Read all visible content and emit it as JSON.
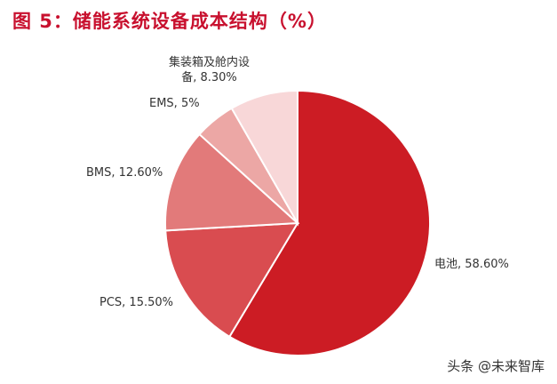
{
  "chart_data": {
    "type": "pie",
    "title": "图 5：储能系统设备成本结构（%）",
    "slices": [
      {
        "label": "电池, 58.60%",
        "name": "电池",
        "value": 58.6,
        "color": "#cc1c24"
      },
      {
        "label": "PCS, 15.50%",
        "name": "PCS",
        "value": 15.5,
        "color": "#d94c50"
      },
      {
        "label": "BMS, 12.60%",
        "name": "BMS",
        "value": 12.6,
        "color": "#e27a7a"
      },
      {
        "label": "EMS, 5%",
        "name": "EMS",
        "value": 5,
        "color": "#eca7a5"
      },
      {
        "label": "集装箱及舱内设备, 8.30%",
        "name": "集装箱及舱内设备",
        "value": 8.3,
        "color": "#f8d7d8",
        "label_lines": [
          "集装箱及舱内设",
          "备, 8.30%"
        ]
      }
    ],
    "legend": "none"
  },
  "watermark": "头条 @未来智库"
}
